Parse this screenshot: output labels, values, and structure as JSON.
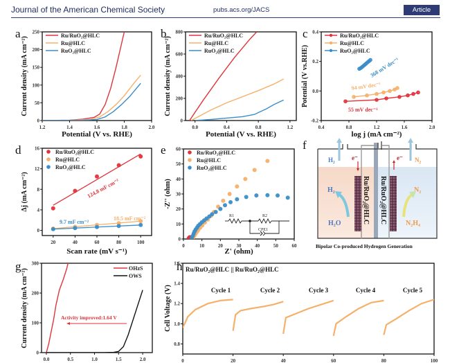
{
  "header": {
    "journal": "Journal of the American Chemical Society",
    "url": "pubs.acs.org/JACS",
    "badge": "Article"
  },
  "colors": {
    "red": "#e0333b",
    "orange": "#f5b06a",
    "blue": "#3a8dc8",
    "black": "#111111",
    "header_blue": "#2e3b74"
  },
  "chart_data": [
    {
      "panel": "a",
      "type": "line",
      "xlabel": "Potential (V vs. RHE)",
      "ylabel": "Current density (mA cm⁻²)",
      "xlim": [
        1.2,
        2.0
      ],
      "ylim": [
        0,
        250
      ],
      "xticks": [
        1.2,
        1.4,
        1.6,
        1.8,
        2.0
      ],
      "yticks": [
        0,
        50,
        100,
        150,
        200,
        250
      ],
      "legend": "top-left",
      "series": [
        {
          "name": "Ru/RuO₂@HLC",
          "color": "red",
          "x": [
            1.2,
            1.4,
            1.5,
            1.58,
            1.62,
            1.66,
            1.7,
            1.74,
            1.77,
            1.8
          ],
          "y": [
            0,
            1,
            4,
            9,
            18,
            45,
            90,
            150,
            200,
            250
          ]
        },
        {
          "name": "Ru@HLC",
          "color": "orange",
          "x": [
            1.2,
            1.4,
            1.55,
            1.62,
            1.68,
            1.74,
            1.8,
            1.86,
            1.92
          ],
          "y": [
            0,
            0.5,
            3,
            10,
            25,
            45,
            70,
            100,
            128
          ]
        },
        {
          "name": "RuO₂@HLC",
          "color": "blue",
          "x": [
            1.2,
            1.5,
            1.6,
            1.66,
            1.72,
            1.78,
            1.84,
            1.92
          ],
          "y": [
            0,
            0.5,
            3,
            10,
            25,
            45,
            68,
            105
          ]
        }
      ]
    },
    {
      "panel": "b",
      "type": "line",
      "xlabel": "Potential (V vs. RHE)",
      "ylabel": "Current density (mA cm⁻²)",
      "xlim": [
        -0.12,
        1.28
      ],
      "ylim": [
        0,
        800
      ],
      "xticks": [
        0.0,
        0.4,
        0.8,
        1.2
      ],
      "yticks": [
        0,
        200,
        400,
        600,
        800
      ],
      "legend": "top-left",
      "series": [
        {
          "name": "Ru/RuO₂@HLC",
          "color": "red",
          "x": [
            -0.07,
            0.1,
            0.3,
            0.5,
            0.7,
            0.78
          ],
          "y": [
            0,
            180,
            380,
            570,
            740,
            800
          ]
        },
        {
          "name": "Ru@HLC",
          "color": "orange",
          "x": [
            -0.05,
            0.2,
            0.4,
            0.6,
            0.8,
            1.0,
            1.12
          ],
          "y": [
            0,
            95,
            160,
            215,
            270,
            330,
            375
          ]
        },
        {
          "name": "RuO₂@HLC",
          "color": "blue",
          "x": [
            0.0,
            0.2,
            0.4,
            0.6,
            0.75,
            0.9,
            1.0,
            1.12
          ],
          "y": [
            0,
            10,
            22,
            35,
            55,
            105,
            145,
            185
          ]
        }
      ]
    },
    {
      "panel": "c",
      "type": "scatter",
      "xlabel": "log j (mA cm⁻²)",
      "ylabel": "Potential (V vs.RHE)",
      "xlim": [
        0.4,
        2.0
      ],
      "ylim": [
        -0.2,
        0.4
      ],
      "xticks": [
        0.4,
        0.8,
        1.2,
        1.6,
        2.0
      ],
      "yticks": [
        -0.2,
        0.0,
        0.2,
        0.4
      ],
      "legend": "top-left",
      "annotations": [
        "368 mV dec⁻¹",
        "94 mV dec⁻¹",
        "55 mV dec⁻¹"
      ],
      "series": [
        {
          "name": "Ru/RuO₂@HLC",
          "color": "red",
          "x": [
            0.75,
            1.2,
            1.34,
            1.53,
            1.65,
            1.73,
            1.8
          ],
          "y": [
            -0.07,
            -0.06,
            -0.05,
            -0.04,
            -0.03,
            -0.02,
            -0.01
          ]
        },
        {
          "name": "Ru@HLC",
          "color": "orange",
          "x": [
            0.87,
            1.06,
            1.2,
            1.3,
            1.39,
            1.46,
            1.5
          ],
          "y": [
            -0.04,
            -0.03,
            -0.02,
            -0.01,
            0.0,
            0.01,
            0.02
          ]
        },
        {
          "name": "RuO₂@HLC",
          "color": "blue",
          "x": [
            0.95,
            0.97,
            0.99,
            1.01,
            1.03,
            1.05,
            1.07,
            1.09,
            1.11
          ],
          "y": [
            0.15,
            0.155,
            0.162,
            0.17,
            0.178,
            0.186,
            0.194,
            0.202,
            0.21
          ]
        }
      ]
    },
    {
      "panel": "d",
      "type": "scatter",
      "xlabel": "Scan rate (mV s⁻¹)",
      "ylabel": "Δj (mA cm⁻²)",
      "xlim": [
        10,
        110
      ],
      "ylim": [
        -1,
        16
      ],
      "xticks": [
        20,
        40,
        60,
        80,
        100
      ],
      "yticks": [
        0,
        4,
        8,
        12,
        16
      ],
      "legend": "top-left",
      "annotations": [
        "124.8 mF cm⁻²",
        "18.5 mF cm⁻²",
        "9.7 mF cm⁻²"
      ],
      "series": [
        {
          "name": "Ru/RuO₂@HLC",
          "color": "red",
          "x": [
            20,
            40,
            60,
            80,
            100
          ],
          "y": [
            4.3,
            7.7,
            10.5,
            12.7,
            14.4
          ],
          "fit": [
            [
              20,
              4.9
            ],
            [
              100,
              14.9
            ]
          ]
        },
        {
          "name": "Ru@HLC",
          "color": "orange",
          "x": [
            20,
            40,
            60,
            80,
            100
          ],
          "y": [
            0.35,
            0.7,
            1.05,
            1.4,
            1.8
          ],
          "fit": [
            [
              20,
              0.35
            ],
            [
              100,
              1.8
            ]
          ]
        },
        {
          "name": "RuO₂@HLC",
          "color": "blue",
          "x": [
            20,
            40,
            60,
            80,
            100
          ],
          "y": [
            0.25,
            0.45,
            0.65,
            0.85,
            1.05
          ],
          "fit": [
            [
              20,
              0.25
            ],
            [
              100,
              1.05
            ]
          ]
        }
      ]
    },
    {
      "panel": "e",
      "type": "scatter",
      "xlabel": "Z' (ohm)",
      "ylabel": "-Z'' (ohm)",
      "xlim": [
        0,
        60
      ],
      "ylim": [
        0,
        60
      ],
      "xticks": [
        0,
        10,
        20,
        30,
        40,
        50,
        60
      ],
      "yticks": [
        0,
        10,
        20,
        30,
        40,
        50,
        60
      ],
      "legend": "top-left",
      "circuit_labels": [
        "R1",
        "R2",
        "CPE1"
      ],
      "series": [
        {
          "name": "Ru/RuO₂@HLC",
          "color": "red",
          "x": [
            2.8,
            3.1,
            3.4
          ],
          "y": [
            0.3,
            0.8,
            1.2
          ]
        },
        {
          "name": "Ru@HLC",
          "color": "orange",
          "x": [
            5,
            5.5,
            6,
            6.6,
            7.3,
            8,
            9,
            10.2,
            11.6,
            13.2,
            15,
            16.5,
            18.8,
            21.5,
            25,
            29,
            33.5,
            38.5,
            45.5
          ],
          "y": [
            0.5,
            1.5,
            2.5,
            3.6,
            4.8,
            6,
            7.5,
            9,
            11,
            13,
            15.5,
            18,
            21.5,
            25.5,
            30,
            35,
            40,
            46,
            52
          ]
        },
        {
          "name": "RuO₂@HLC",
          "color": "blue",
          "x": [
            4.5,
            5,
            5.5,
            6,
            6.6,
            7.3,
            8,
            9,
            10,
            11.2,
            12.5,
            14,
            15.5,
            17.5,
            20,
            22.5,
            25.5,
            29,
            34,
            39.5,
            45.5,
            51,
            56.5
          ],
          "y": [
            0.5,
            2,
            3.5,
            5,
            6.3,
            7.5,
            8.8,
            10,
            11.2,
            12.4,
            13.7,
            15,
            16.5,
            18,
            20,
            22.5,
            24.5,
            26.5,
            28,
            29,
            29.2,
            29,
            27.5
          ]
        }
      ]
    },
    {
      "panel": "g",
      "type": "line",
      "xlabel": "",
      "ylabel": "Current density (mA cm⁻²)",
      "xlim": [
        -0.1,
        2.2
      ],
      "ylim": [
        0,
        300
      ],
      "xticks": [
        0.0,
        0.5,
        1.0,
        1.5,
        2.0
      ],
      "yticks": [
        0,
        100,
        200,
        300
      ],
      "legend": "top-right",
      "annotation": "Activity improved:1.64 V",
      "series": [
        {
          "name": "OHzS",
          "color": "red",
          "x": [
            0.0,
            0.05,
            0.1,
            0.15,
            0.2,
            0.27,
            0.35,
            0.42,
            0.45
          ],
          "y": [
            0,
            30,
            70,
            110,
            160,
            210,
            245,
            280,
            300
          ]
        },
        {
          "name": "OWS",
          "color": "black",
          "x": [
            0.0,
            1.2,
            1.4,
            1.5,
            1.6,
            1.7,
            1.8,
            1.9,
            2.0
          ],
          "y": [
            0,
            0,
            1,
            4,
            20,
            60,
            110,
            160,
            210
          ]
        }
      ]
    },
    {
      "panel": "h",
      "type": "line",
      "xlabel": "",
      "ylabel": "Cell Voltage (V)",
      "xlim": [
        0,
        100
      ],
      "ylim": [
        0.7,
        1.6
      ],
      "xticks": [
        0,
        20,
        40,
        60,
        80,
        100
      ],
      "yticks": [
        0.8,
        1.0,
        1.2,
        1.4,
        1.6
      ],
      "inset_title": "Ru/RuO₂@HLC || Ru/RuO₂@HLC",
      "cycle_labels": [
        "Cycle 1",
        "Cycle 2",
        "Cycle 3",
        "Cycle 4",
        "Cycle 5"
      ],
      "series": [
        {
          "name": "Cycle 1",
          "color": "orange",
          "x": [
            0,
            2,
            5,
            10,
            15,
            20
          ],
          "y": [
            0.96,
            1.07,
            1.14,
            1.2,
            1.23,
            1.24
          ]
        },
        {
          "name": "Cycle 2",
          "color": "orange",
          "x": [
            20,
            21,
            23,
            27,
            32,
            36,
            40
          ],
          "y": [
            0.93,
            1.09,
            1.13,
            1.15,
            1.17,
            1.19,
            1.22
          ]
        },
        {
          "name": "Cycle 3",
          "color": "orange",
          "x": [
            40,
            41,
            45,
            50,
            55,
            60
          ],
          "y": [
            0.9,
            1.06,
            1.1,
            1.15,
            1.19,
            1.23
          ]
        },
        {
          "name": "Cycle 4",
          "color": "orange",
          "x": [
            60,
            61,
            65,
            70,
            75,
            80
          ],
          "y": [
            0.88,
            1.0,
            1.07,
            1.15,
            1.21,
            1.23
          ]
        },
        {
          "name": "Cycle 5",
          "color": "orange",
          "x": [
            80,
            81,
            85,
            90,
            95,
            100
          ],
          "y": [
            0.89,
            0.99,
            1.05,
            1.13,
            1.2,
            1.24
          ]
        }
      ]
    }
  ],
  "schematic_f": {
    "left_gas": "H₂",
    "right_gas": "N₂",
    "electron_left": "e⁻",
    "electron_right": "e⁻",
    "left_product": "H₂",
    "left_reactant": "H₂O",
    "right_product": "N₂",
    "right_reactant": "N₂H₄",
    "electrode_label": "Ru/RuO₂@HLC",
    "caption": "Bipolar Co-produced Hydrogen Generation"
  },
  "panel_letters": [
    "a",
    "b",
    "c",
    "d",
    "e",
    "f",
    "g",
    "h"
  ]
}
